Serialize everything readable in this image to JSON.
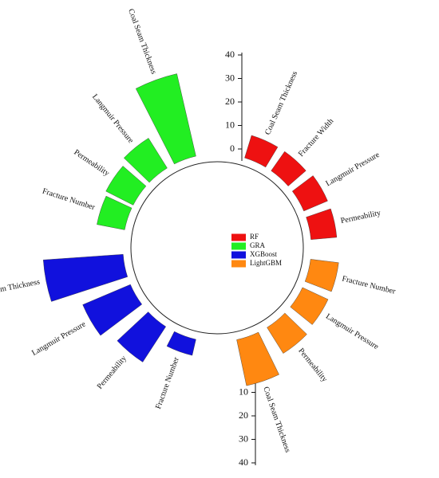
{
  "chart_data": {
    "type": "radial_bar",
    "series": [
      {
        "name": "RF",
        "color": "#ee1111",
        "categories": [
          "Coal Seam Thickness",
          "Fracture Width",
          "Langmuir Pressure",
          "Permeability"
        ],
        "values": [
          10,
          10,
          11,
          11
        ]
      },
      {
        "name": "GRA",
        "color": "#22ee22",
        "categories": [
          "Fracture Number",
          "Permeability",
          "Langmuir Pressure",
          "Coal Seam Thickness"
        ],
        "values": [
          12,
          13,
          15,
          36
        ]
      },
      {
        "name": "XGBoost",
        "color": "#1111dd",
        "categories": [
          "Fracture Number",
          "Permeability",
          "Langmuir Pressure",
          "Coal Seam Thickness"
        ],
        "values": [
          7,
          18,
          22,
          34
        ]
      },
      {
        "name": "LightGBM",
        "color": "#ff8811",
        "categories": [
          "Fracture Number",
          "Langmuir Pressure",
          "Permeability",
          "Coal Seam Thickness"
        ],
        "values": [
          12,
          12,
          13,
          20
        ]
      }
    ],
    "ylim": [
      0,
      40
    ],
    "yticks": [
      0,
      10,
      20,
      30,
      40
    ]
  }
}
